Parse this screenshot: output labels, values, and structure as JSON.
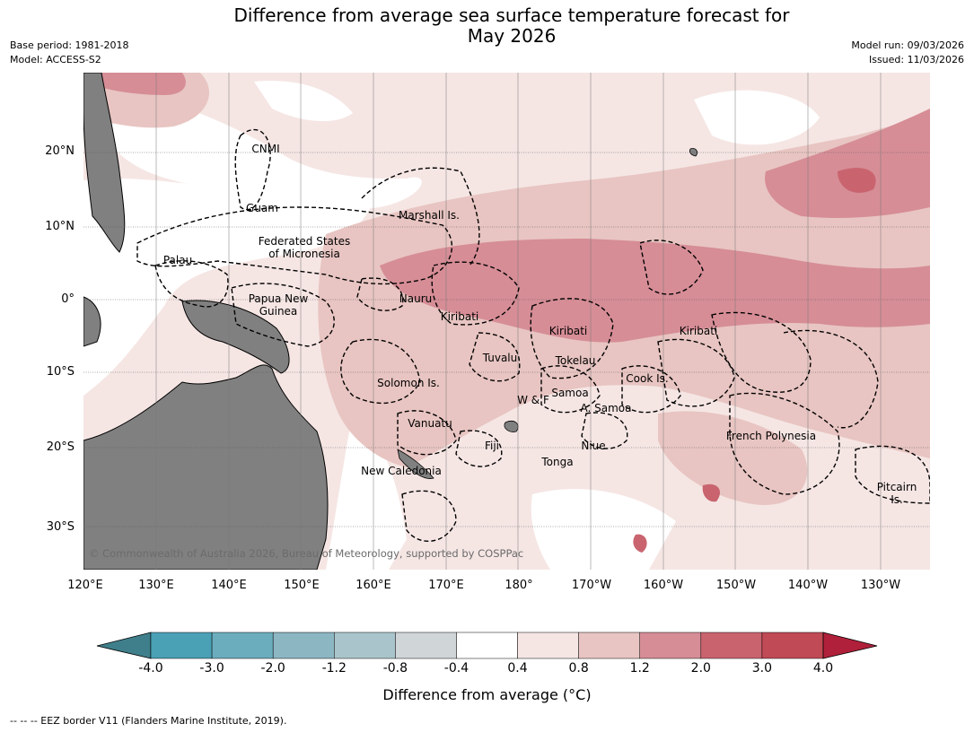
{
  "title": {
    "line1": "Difference from average sea surface temperature forecast for",
    "line2": "May 2026"
  },
  "meta": {
    "base_period": "Base period: 1981-2018",
    "model": "Model: ACCESS-S2",
    "model_run": "Model run: 09/03/2026",
    "issued": "Issued: 11/03/2026"
  },
  "axes": {
    "lat_labels": [
      "20°N",
      "10°N",
      "0°",
      "10°S",
      "20°S",
      "30°S"
    ],
    "lon_labels": [
      "120°E",
      "130°E",
      "140°E",
      "150°E",
      "160°E",
      "170°E",
      "180°",
      "170°W",
      "160°W",
      "150°W",
      "140°W",
      "130°W"
    ]
  },
  "regions": {
    "cnmi": "CNMI",
    "guam": "Guam",
    "marshall": "Marshall Is.",
    "fsm_line1": "Federated States",
    "fsm_line2": "of Micronesia",
    "palau": "Palau",
    "png_line1": "Papua New",
    "png_line2": "Guinea",
    "nauru": "Nauru",
    "kiribati_west": "Kiribati",
    "kiribati_central": "Kiribati",
    "kiribati_east": "Kiribati",
    "tuvalu": "Tuvalu",
    "tokelau": "Tokelau",
    "solomon": "Solomon Is.",
    "samoa": "Samoa",
    "wallis_futuna": "W & F",
    "american_samoa": "A. Samoa",
    "cook": "Cook Is.",
    "vanuatu": "Vanuatu",
    "fiji": "Fiji",
    "niue": "Niue",
    "tonga": "Tonga",
    "new_caledonia": "New Caledonia",
    "french_polynesia": "French Polynesia",
    "pitcairn_line1": "Pitcairn",
    "pitcairn_line2": "Is."
  },
  "copyright": "© Commonwealth of Australia 2026, Bureau of Meteorology, supported by COSPPac",
  "colorbar": {
    "ticks": [
      "-4.0",
      "-3.0",
      "-2.0",
      "-1.2",
      "-0.8",
      "-0.4",
      "0.4",
      "0.8",
      "1.2",
      "2.0",
      "3.0",
      "4.0"
    ],
    "colors": [
      "#3f7f8b",
      "#4aa0b5",
      "#6badbd",
      "#8cb6c2",
      "#a9c5cb",
      "#d0d5d8",
      "#ffffff",
      "#f5e6e4",
      "#e8c5c2",
      "#d68d96",
      "#c9646f",
      "#c04a55",
      "#b0203a"
    ],
    "label": "Difference from average (°C)"
  },
  "footer": "--  --  -- EEZ border V11 (Flanders Marine Institute, 2019)."
}
